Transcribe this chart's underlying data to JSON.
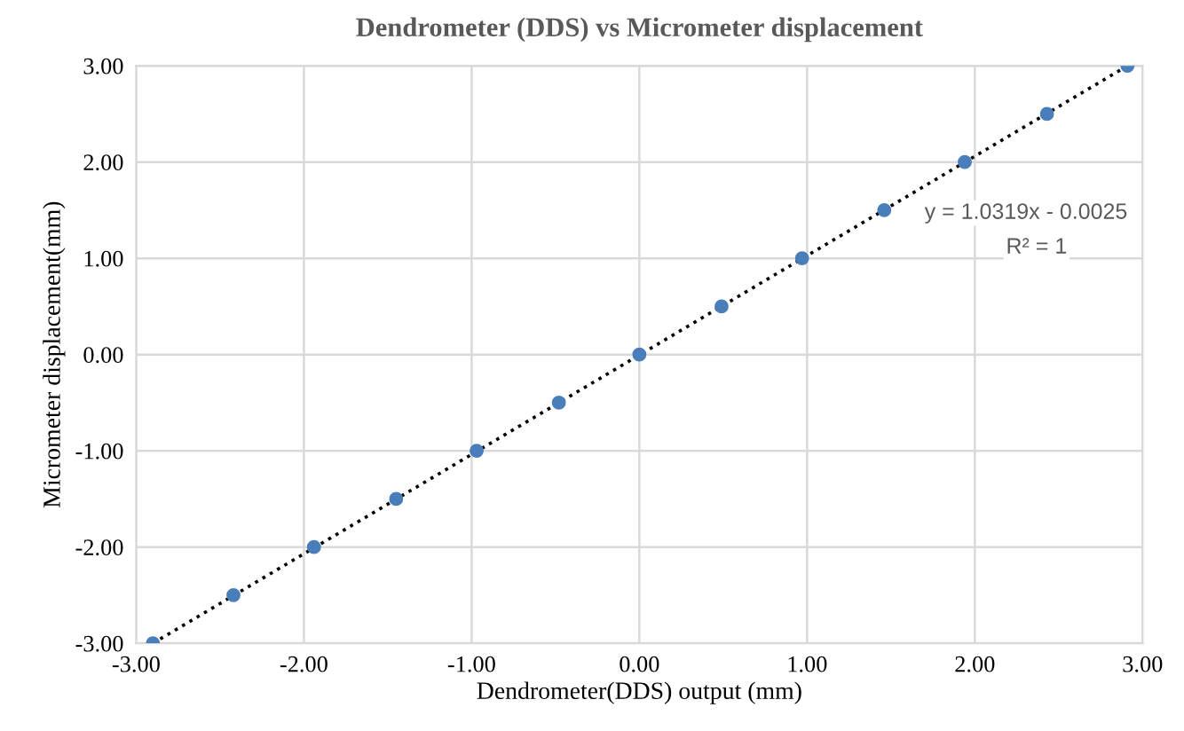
{
  "chart_data": {
    "type": "scatter",
    "title": "Dendrometer (DDS) vs Micrometer displacement",
    "xlabel": "Dendrometer(DDS) output (mm)",
    "ylabel": "Micrometer displacement(mm)",
    "series": [
      {
        "color": "#4a7ebb",
        "marker": "circle",
        "x": [
          -2.9,
          -2.42,
          -1.94,
          -1.45,
          -0.97,
          -0.48,
          0.0,
          0.49,
          0.97,
          1.46,
          1.94,
          2.43,
          2.91
        ],
        "values": [
          -3.0,
          -2.5,
          -2.0,
          -1.5,
          -1.0,
          -0.5,
          0.0,
          0.5,
          1.0,
          1.5,
          2.0,
          2.5,
          3.0
        ]
      },
      {
        "type": "line",
        "color": "#000000",
        "line_style": "dotted",
        "marker": "none",
        "x": [
          -2.9,
          2.91
        ],
        "values": [
          -3.0,
          3.0
        ]
      }
    ],
    "annotations": [
      "y = 1.0319x - 0.0025",
      "R² = 1"
    ],
    "xlim": [
      -3,
      3
    ],
    "ylim": [
      -3,
      3
    ],
    "xticks": [
      {
        "value": -3,
        "label": "-3.00"
      },
      {
        "value": -2,
        "label": "-2.00"
      },
      {
        "value": -1,
        "label": "-1.00"
      },
      {
        "value": 0,
        "label": "0.00"
      },
      {
        "value": 1,
        "label": "1.00"
      },
      {
        "value": 2,
        "label": "2.00"
      },
      {
        "value": 3,
        "label": "3.00"
      }
    ],
    "yticks": [
      {
        "value": -3,
        "label": "-3.00"
      },
      {
        "value": -2,
        "label": "-2.00"
      },
      {
        "value": -1,
        "label": "-1.00"
      },
      {
        "value": 0,
        "label": "0.00"
      },
      {
        "value": 1,
        "label": "1.00"
      },
      {
        "value": 2,
        "label": "2.00"
      },
      {
        "value": 3,
        "label": "3.00"
      }
    ],
    "grid": true
  }
}
